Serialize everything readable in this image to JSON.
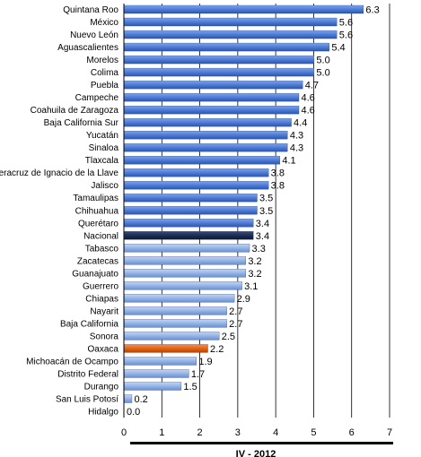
{
  "chart_data": {
    "type": "bar",
    "orientation": "horizontal",
    "categories": [
      "Quintana Roo",
      "México",
      "Nuevo León",
      "Aguascalientes",
      "Morelos",
      "Colima",
      "Puebla",
      "Campeche",
      "Coahuila de Zaragoza",
      "Baja California Sur",
      "Yucatán",
      "Sinaloa",
      "Tlaxcala",
      "Veracruz de Ignacio de la Llave",
      "Jalisco",
      "Tamaulipas",
      "Chihuahua",
      "Querétaro",
      "Nacional",
      "Tabasco",
      "Zacatecas",
      "Guanajuato",
      "Guerrero",
      "Chiapas",
      "Nayarit",
      "Baja California",
      "Sonora",
      "Oaxaca",
      "Michoacán de Ocampo",
      "Distrito Federal",
      "Durango",
      "San Luis Potosí",
      "Hidalgo"
    ],
    "values": [
      6.3,
      5.6,
      5.6,
      5.4,
      5.0,
      5.0,
      4.7,
      4.6,
      4.6,
      4.4,
      4.3,
      4.3,
      4.1,
      3.8,
      3.8,
      3.5,
      3.5,
      3.4,
      3.4,
      3.3,
      3.2,
      3.2,
      3.1,
      2.9,
      2.7,
      2.7,
      2.5,
      2.2,
      1.9,
      1.7,
      1.5,
      0.2,
      0.0
    ],
    "value_labels": [
      "6.3",
      "5.6",
      "5.6",
      "5.4",
      "5.0",
      "5.0",
      "4.7",
      "4.6",
      "4.6",
      "4.4",
      "4.3",
      "4.3",
      "4.1",
      "3.8",
      "3.8",
      "3.5",
      "3.5",
      "3.4",
      "3.4",
      "3.3",
      "3.2",
      "3.2",
      "3.1",
      "2.9",
      "2.7",
      "2.7",
      "2.5",
      "2.2",
      "1.9",
      "1.7",
      "1.5",
      "0.2",
      "0.0"
    ],
    "xlim": [
      0,
      7
    ],
    "x_ticks": [
      "0",
      "1",
      "2",
      "3",
      "4",
      "5",
      "6",
      "7"
    ],
    "xlabel": "IV - 2012",
    "grid": "vertical",
    "colors": {
      "above_national": "#4a78d4",
      "national": "#1a2a50",
      "below_national": "#8fb0e4",
      "highlight": "#e06010",
      "grid": "#000000"
    },
    "highlight_category": "Oaxaca",
    "reference_category": "Nacional"
  }
}
